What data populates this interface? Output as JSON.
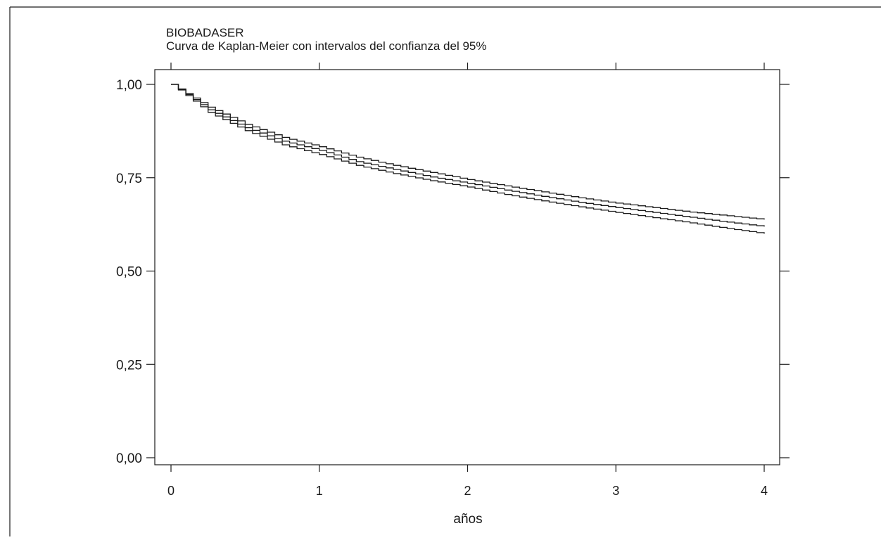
{
  "chart_data": {
    "type": "line",
    "title": "BIOBADASER",
    "subtitle": "Curva de Kaplan-Meier con intervalos del confianza del 95%",
    "xlabel": "años",
    "ylabel": "",
    "xlim": [
      0,
      4
    ],
    "ylim": [
      0,
      1
    ],
    "x_ticks": [
      0,
      1,
      2,
      3,
      4
    ],
    "x_tick_labels": [
      "0",
      "1",
      "2",
      "3",
      "4"
    ],
    "y_ticks": [
      0,
      0.25,
      0.5,
      0.75,
      1
    ],
    "y_tick_labels": [
      "0,00",
      "0,25",
      "0,50",
      "0,75",
      "1,00"
    ],
    "grid": false,
    "line_color": "#1a1a1a",
    "step": true,
    "x": [
      0,
      0.25,
      0.5,
      0.75,
      1,
      1.25,
      1.5,
      1.75,
      2,
      2.25,
      2.5,
      2.75,
      3,
      3.25,
      3.5,
      3.75,
      4
    ],
    "series": [
      {
        "values": [
          1.0,
          0.939,
          0.893,
          0.858,
          0.833,
          0.805,
          0.783,
          0.764,
          0.745,
          0.728,
          0.712,
          0.696,
          0.682,
          0.67,
          0.658,
          0.648,
          0.638
        ]
      },
      {
        "values": [
          1.0,
          0.932,
          0.884,
          0.848,
          0.823,
          0.793,
          0.772,
          0.752,
          0.735,
          0.717,
          0.7,
          0.684,
          0.67,
          0.657,
          0.644,
          0.631,
          0.619
        ]
      },
      {
        "values": [
          1.0,
          0.925,
          0.876,
          0.838,
          0.812,
          0.783,
          0.761,
          0.742,
          0.725,
          0.705,
          0.688,
          0.672,
          0.657,
          0.643,
          0.629,
          0.614,
          0.6
        ]
      }
    ]
  }
}
